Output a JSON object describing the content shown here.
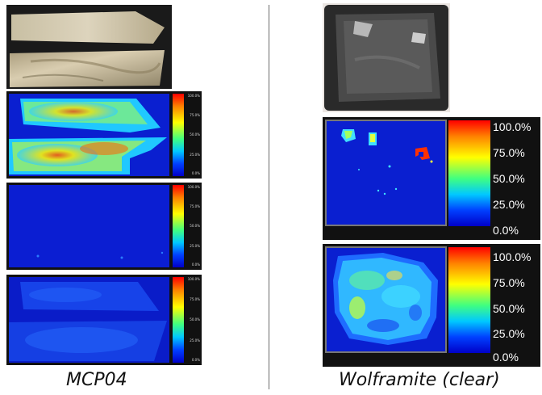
{
  "left_panel": {
    "caption": "MCP04",
    "colorbar_ticks": [
      "100.0%",
      "75.0%",
      "50.0%",
      "25.0%",
      "0.0%"
    ]
  },
  "right_panel": {
    "caption": "Wolframite (clear)",
    "colorbar_ticks": [
      "100.0%",
      "75.0%",
      "50.0%",
      "25.0%",
      "0.0%"
    ]
  }
}
